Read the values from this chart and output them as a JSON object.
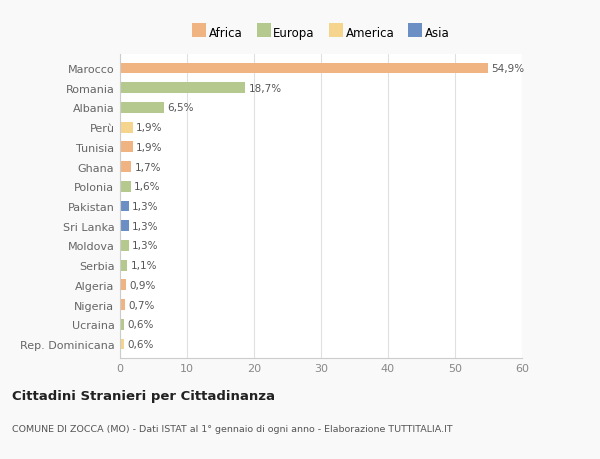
{
  "countries": [
    "Marocco",
    "Romania",
    "Albania",
    "Perù",
    "Tunisia",
    "Ghana",
    "Polonia",
    "Pakistan",
    "Sri Lanka",
    "Moldova",
    "Serbia",
    "Algeria",
    "Nigeria",
    "Ucraina",
    "Rep. Dominicana"
  ],
  "values": [
    54.9,
    18.7,
    6.5,
    1.9,
    1.9,
    1.7,
    1.6,
    1.3,
    1.3,
    1.3,
    1.1,
    0.9,
    0.7,
    0.6,
    0.6
  ],
  "labels": [
    "54,9%",
    "18,7%",
    "6,5%",
    "1,9%",
    "1,9%",
    "1,7%",
    "1,6%",
    "1,3%",
    "1,3%",
    "1,3%",
    "1,1%",
    "0,9%",
    "0,7%",
    "0,6%",
    "0,6%"
  ],
  "colors": [
    "#f0b482",
    "#b5c98e",
    "#b5c98e",
    "#f5d48e",
    "#f0b482",
    "#f0b482",
    "#b5c98e",
    "#6b8fc4",
    "#6b8fc4",
    "#b5c98e",
    "#b5c98e",
    "#f0b482",
    "#f0b482",
    "#b5c98e",
    "#f5d48e"
  ],
  "legend_labels": [
    "Africa",
    "Europa",
    "America",
    "Asia"
  ],
  "legend_colors": [
    "#f0b482",
    "#b5c98e",
    "#f5d48e",
    "#6b8fc4"
  ],
  "title": "Cittadini Stranieri per Cittadinanza",
  "subtitle": "COMUNE DI ZOCCA (MO) - Dati ISTAT al 1° gennaio di ogni anno - Elaborazione TUTTITALIA.IT",
  "xlim": [
    0,
    60
  ],
  "xticks": [
    0,
    10,
    20,
    30,
    40,
    50,
    60
  ],
  "background_color": "#f9f9f9",
  "bar_background": "#ffffff"
}
